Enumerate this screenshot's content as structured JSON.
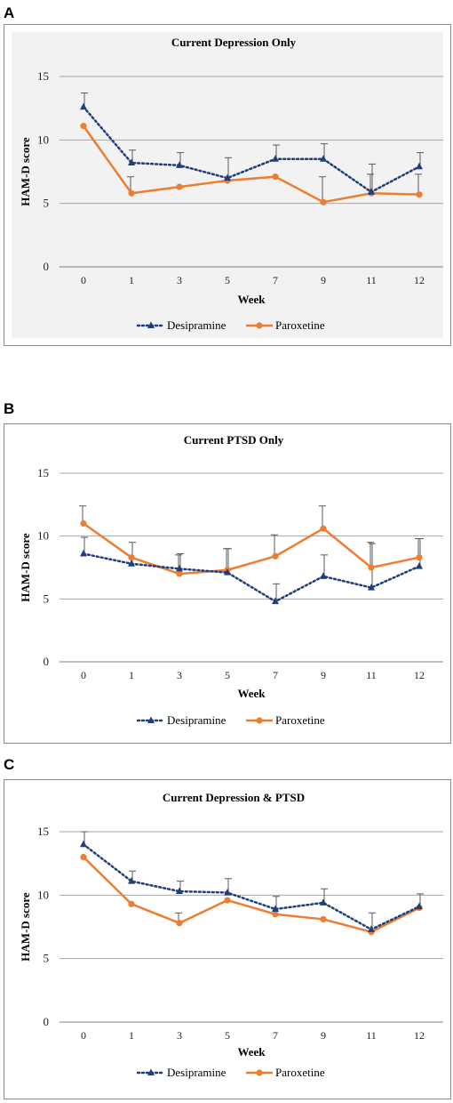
{
  "panels": [
    {
      "letter": "A",
      "chart_data": {
        "type": "line",
        "title": "Current Depression Only",
        "xlabel": "Week",
        "ylabel": "HAM-D score",
        "categories": [
          "0",
          "1",
          "3",
          "5",
          "7",
          "9",
          "11",
          "12"
        ],
        "ylim": [
          0,
          15
        ],
        "yticks": [
          0,
          5,
          10,
          15
        ],
        "grid": true,
        "plot_background": "#f2f2f2",
        "legend": "bottom",
        "series": [
          {
            "name": "Desipramine",
            "color": "#1f3e7a",
            "style": "dotted",
            "marker": "triangle",
            "values": [
              12.6,
              8.2,
              8.0,
              7.0,
              8.5,
              8.5,
              5.9,
              7.9
            ],
            "err_up": [
              1.1,
              1.0,
              1.0,
              1.6,
              1.1,
              1.2,
              2.2,
              1.1
            ]
          },
          {
            "name": "Paroxetine",
            "color": "#ed7d31",
            "style": "solid",
            "marker": "circle",
            "values": [
              11.1,
              5.8,
              6.3,
              6.8,
              7.1,
              5.1,
              5.8,
              5.7
            ],
            "err_up": [
              0,
              1.3,
              0,
              0,
              0,
              2.0,
              1.5,
              1.6
            ]
          }
        ]
      }
    },
    {
      "letter": "B",
      "chart_data": {
        "type": "line",
        "title": "Current PTSD Only",
        "xlabel": "Week",
        "ylabel": "HAM-D score",
        "categories": [
          "0",
          "1",
          "3",
          "5",
          "7",
          "9",
          "11",
          "12"
        ],
        "ylim": [
          0,
          15
        ],
        "yticks": [
          0,
          5,
          10,
          15
        ],
        "grid": true,
        "plot_background": "#ffffff",
        "legend": "bottom",
        "series": [
          {
            "name": "Desipramine",
            "color": "#1f3e7a",
            "style": "dotted",
            "marker": "triangle",
            "values": [
              8.6,
              7.8,
              7.4,
              7.1,
              4.8,
              6.8,
              5.9,
              7.6
            ],
            "err_up": [
              1.3,
              1.7,
              1.2,
              1.9,
              1.4,
              1.7,
              3.5,
              2.2
            ]
          },
          {
            "name": "Paroxetine",
            "color": "#ed7d31",
            "style": "solid",
            "marker": "circle",
            "values": [
              11.0,
              8.3,
              7.0,
              7.3,
              8.4,
              10.6,
              7.5,
              8.3
            ],
            "err_up": [
              1.4,
              0,
              1.5,
              1.7,
              1.7,
              1.8,
              2.0,
              1.5
            ]
          }
        ]
      }
    },
    {
      "letter": "C",
      "chart_data": {
        "type": "line",
        "title": "Current Depression & PTSD",
        "xlabel": "Week",
        "ylabel": "HAM-D score",
        "categories": [
          "0",
          "1",
          "3",
          "5",
          "7",
          "9",
          "11",
          "12"
        ],
        "ylim": [
          0,
          15
        ],
        "yticks": [
          0,
          5,
          10,
          15
        ],
        "grid": true,
        "plot_background": "#ffffff",
        "legend": "bottom",
        "series": [
          {
            "name": "Desipramine",
            "color": "#1f3e7a",
            "style": "dotted",
            "marker": "triangle",
            "values": [
              14.0,
              11.1,
              10.3,
              10.2,
              8.9,
              9.4,
              7.3,
              9.1
            ],
            "err_up": [
              1.0,
              0.8,
              0.8,
              1.1,
              1.0,
              1.1,
              1.3,
              1.0
            ]
          },
          {
            "name": "Paroxetine",
            "color": "#ed7d31",
            "style": "solid",
            "marker": "circle",
            "values": [
              13.0,
              9.3,
              7.8,
              9.6,
              8.5,
              8.1,
              7.1,
              9.0
            ],
            "err_up": [
              0,
              0,
              0.8,
              0,
              0,
              0,
              0,
              0
            ]
          }
        ]
      }
    }
  ]
}
